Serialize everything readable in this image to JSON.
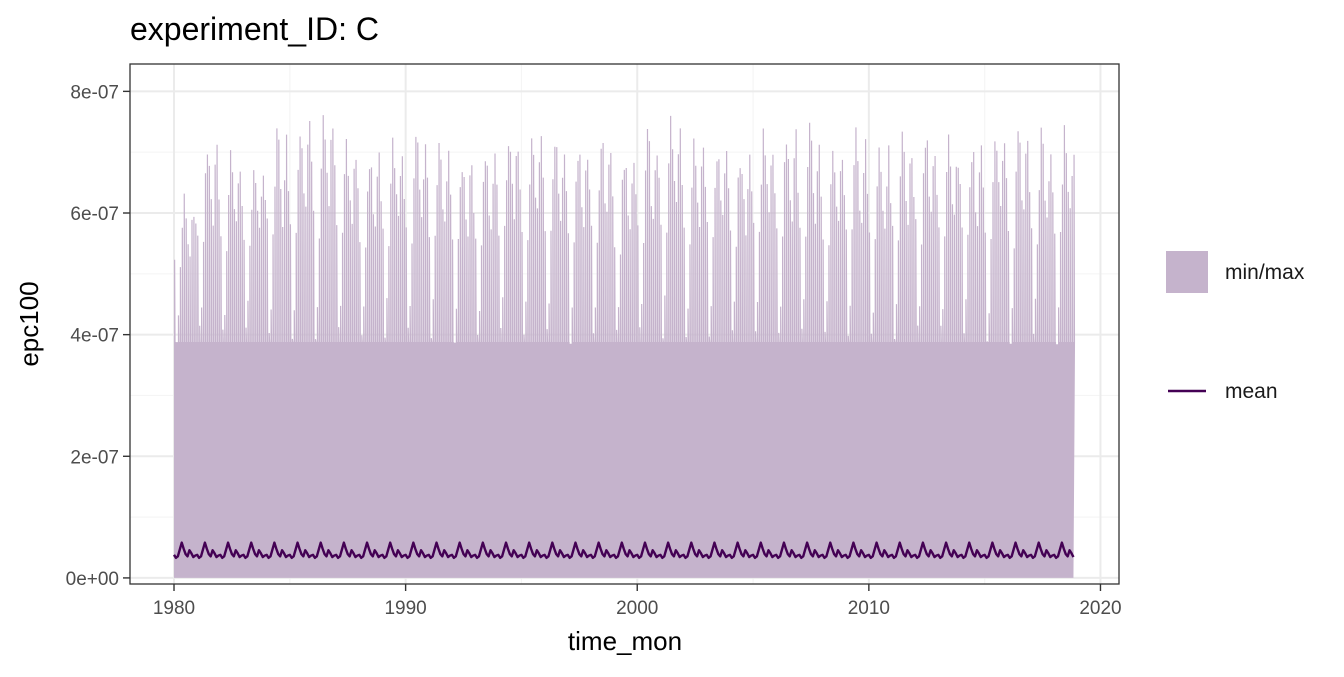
{
  "chart_data": {
    "type": "area",
    "title": "experiment_ID: C",
    "xlabel": "time_mon",
    "ylabel": "epc100",
    "xlim": [
      1978.1,
      2020.8
    ],
    "ylim": [
      -1e-08,
      8.45e-07
    ],
    "x_ticks": [
      1980,
      1990,
      2000,
      2010,
      2020
    ],
    "x_tick_labels": [
      "1980",
      "1990",
      "2000",
      "2010",
      "2020"
    ],
    "y_ticks": [
      0,
      2e-07,
      4e-07,
      6e-07,
      8e-07
    ],
    "y_tick_labels": [
      "0e+00",
      "2e-07",
      "4e-07",
      "6e-07",
      "8e-07"
    ],
    "x_range": [
      1980.0,
      2018.92
    ],
    "months_per_year": 12,
    "min_value": 0,
    "annual_peak_max": [
      6.4e-07,
      7.35e-07,
      7.2e-07,
      7e-07,
      7.55e-07,
      7.85e-07,
      7.85e-07,
      7.3e-07,
      7.2e-07,
      7.5e-07,
      7.45e-07,
      7.3e-07,
      7.1e-07,
      7.3e-07,
      7.6e-07,
      7.6e-07,
      7.5e-07,
      7.3e-07,
      7.45e-07,
      7.2e-07,
      7.5e-07,
      7.7e-07,
      7.5e-07,
      7.3e-07,
      7.2e-07,
      7.6e-07,
      7.6e-07,
      7.5e-07,
      7.3e-07,
      7.5e-07,
      7.3e-07,
      7.4e-07,
      7.5e-07,
      7.4e-07,
      7.3e-07,
      7.6e-07,
      7.5e-07,
      7.5e-07,
      7.5e-07
    ],
    "max_trough": 4e-07,
    "mean_low": 3.3e-08,
    "mean_peak": 5.8e-08,
    "mean_secondary_peak": 4.5e-08,
    "legend": {
      "position": "right",
      "entries": [
        {
          "key": "ribbon",
          "label": "min/max",
          "color": "#c5b3cc"
        },
        {
          "key": "line",
          "label": "mean",
          "color": "#440154"
        }
      ]
    },
    "colors": {
      "ribbon": "#c5b3cc",
      "mean_line": "#440154",
      "panel_border": "#333333",
      "grid_major": "#ebebeb",
      "grid_minor": "#f5f5f5"
    }
  }
}
